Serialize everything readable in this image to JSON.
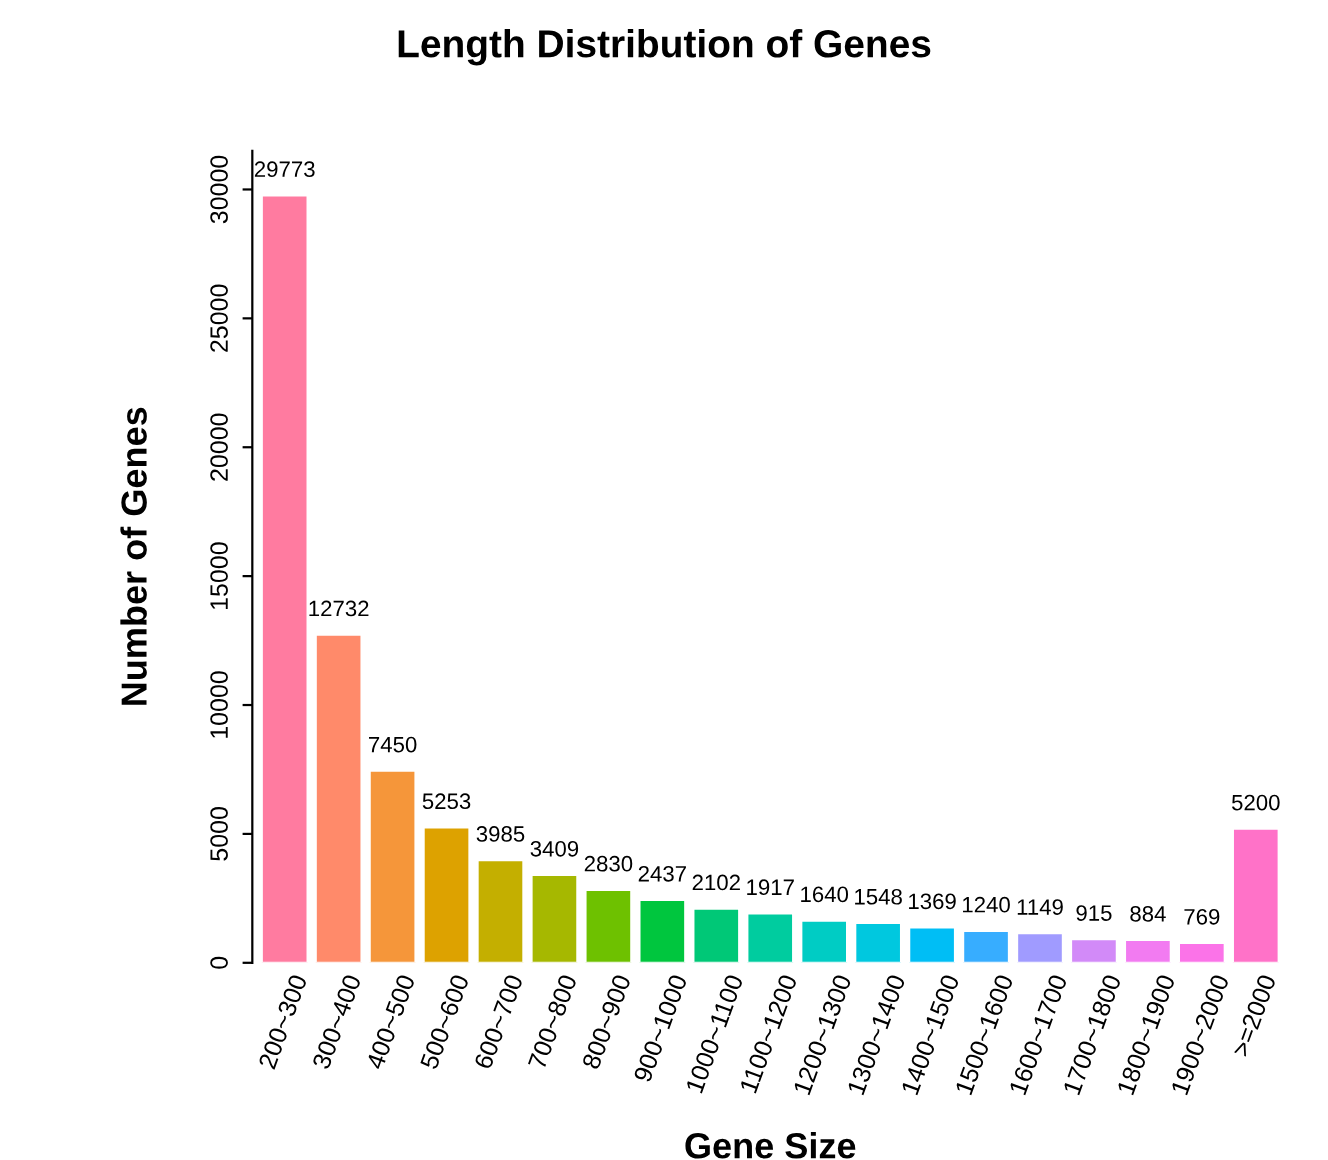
{
  "chart_data": {
    "type": "bar",
    "title": "Length Distribution of Genes",
    "xlabel": "Gene Size",
    "ylabel": "Number of Genes",
    "categories": [
      "200~300",
      "300~400",
      "400~500",
      "500~600",
      "600~700",
      "700~800",
      "800~900",
      "900~1000",
      "1000~1100",
      "1100~1200",
      "1200~1300",
      "1300~1400",
      "1400~1500",
      "1500~1600",
      "1600~1700",
      "1700~1800",
      "1800~1900",
      "1900~2000",
      ">=2000"
    ],
    "values": [
      29773,
      12732,
      7450,
      5253,
      3985,
      3409,
      2830,
      2437,
      2102,
      1917,
      1640,
      1548,
      1369,
      1240,
      1149,
      915,
      884,
      769,
      5200
    ],
    "colors": [
      "#ff7ba0",
      "#ff8a6a",
      "#f5963a",
      "#dda200",
      "#c4af00",
      "#a6b800",
      "#6ec100",
      "#00c63e",
      "#00c877",
      "#00cc9f",
      "#00ccc4",
      "#00c8df",
      "#00bef5",
      "#37adff",
      "#a09bff",
      "#d28af8",
      "#f27bf1",
      "#fb73e8",
      "#ff72c8"
    ],
    "ylim": [
      0,
      31500
    ],
    "yticks": [
      0,
      5000,
      10000,
      15000,
      20000,
      25000,
      30000
    ],
    "data_labels": true,
    "grid": false,
    "legend": false
  }
}
